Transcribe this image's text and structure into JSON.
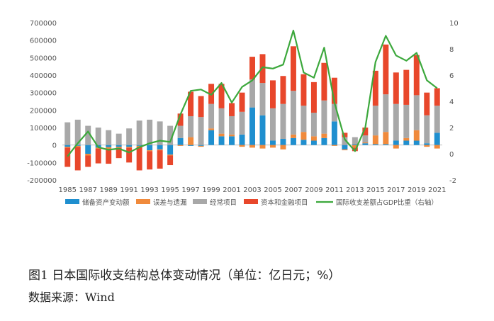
{
  "figure": {
    "caption": "图1  日本国际收支结构总体变动情况（单位：亿日元；%）",
    "source": "数据来源：Wind"
  },
  "chart_data": {
    "type": "bar",
    "stacked": true,
    "title": "",
    "categories": [
      "1985",
      "1986",
      "1987",
      "1988",
      "1989",
      "1990",
      "1991",
      "1992",
      "1993",
      "1994",
      "1995",
      "1996",
      "1997",
      "1998",
      "1999",
      "2000",
      "2001",
      "2002",
      "2003",
      "2004",
      "2005",
      "2006",
      "2007",
      "2008",
      "2009",
      "2010",
      "2011",
      "2012",
      "2013",
      "2014",
      "2015",
      "2016",
      "2017",
      "2018",
      "2019",
      "2020",
      "2021"
    ],
    "x_tick_labels": [
      "1985",
      "1987",
      "1989",
      "1991",
      "1993",
      "1995",
      "1997",
      "1999",
      "2001",
      "2003",
      "2005",
      "2007",
      "2009",
      "2011",
      "2013",
      "2015",
      "2017",
      "2019",
      "2021"
    ],
    "y_left": {
      "min": -200000,
      "max": 700000,
      "step": 100000,
      "ticks": [
        "-200000",
        "-100000",
        "0",
        "100000",
        "200000",
        "300000",
        "400000",
        "500000",
        "600000",
        "700000"
      ]
    },
    "y_right": {
      "min": -2,
      "max": 10,
      "step": 2,
      "ticks": [
        "-2",
        "0",
        "2",
        "4",
        "6",
        "8",
        "10"
      ]
    },
    "legend_position": "bottom",
    "grid": false,
    "series": [
      {
        "name": "储备资产变动额",
        "color": "#1f8fcf",
        "axis": "left",
        "values": [
          -10000,
          -5000,
          -50000,
          -15000,
          -12000,
          -10000,
          -10000,
          -5000,
          -30000,
          -25000,
          -55000,
          40000,
          -5000,
          -5000,
          85000,
          50000,
          50000,
          60000,
          215000,
          170000,
          25000,
          35000,
          40000,
          30000,
          25000,
          40000,
          135000,
          -25000,
          5000,
          10000,
          5000,
          5000,
          25000,
          25000,
          25000,
          10000,
          70000
        ]
      },
      {
        "name": "误差与遗漏",
        "color": "#f08a3c",
        "axis": "left",
        "values": [
          -5000,
          -5000,
          -10000,
          -5000,
          -10000,
          -5000,
          -5000,
          -5000,
          -5000,
          -5000,
          -5000,
          -5000,
          45000,
          -5000,
          10000,
          15000,
          10000,
          -10000,
          -15000,
          -20000,
          -15000,
          -25000,
          20000,
          45000,
          25000,
          25000,
          -5000,
          -5000,
          -15000,
          5000,
          50000,
          70000,
          -20000,
          15000,
          60000,
          -10000,
          -20000
        ]
      },
      {
        "name": "经常项目",
        "color": "#a8a8a8",
        "axis": "left",
        "values": [
          130000,
          145000,
          110000,
          100000,
          85000,
          65000,
          95000,
          140000,
          145000,
          135000,
          110000,
          70000,
          120000,
          160000,
          140000,
          145000,
          105000,
          130000,
          160000,
          185000,
          185000,
          200000,
          250000,
          150000,
          135000,
          190000,
          100000,
          45000,
          40000,
          40000,
          170000,
          215000,
          210000,
          190000,
          200000,
          160000,
          155000
        ]
      },
      {
        "name": "资本和金融项目",
        "color": "#e8472b",
        "axis": "left",
        "values": [
          -110000,
          -135000,
          -65000,
          -85000,
          -85000,
          -60000,
          -85000,
          -135000,
          -105000,
          -105000,
          -55000,
          70000,
          140000,
          120000,
          115000,
          140000,
          75000,
          110000,
          130000,
          165000,
          160000,
          160000,
          255000,
          180000,
          175000,
          215000,
          150000,
          25000,
          -20000,
          45000,
          200000,
          285000,
          180000,
          200000,
          230000,
          130000,
          100000
        ]
      },
      {
        "name": "国际收支差额占GDP比重（右轴）",
        "color": "#3ca83c",
        "axis": "right",
        "render": "line",
        "values": [
          -0.2,
          0.8,
          1.7,
          0.5,
          0.3,
          0.4,
          0.1,
          0.5,
          0.8,
          1.0,
          0.9,
          3.0,
          4.8,
          4.9,
          4.5,
          5.4,
          3.9,
          5.1,
          5.6,
          6.6,
          6.5,
          6.8,
          9.4,
          6.2,
          5.8,
          8.1,
          3.9,
          1.1,
          0.2,
          2.0,
          7.0,
          9.0,
          7.5,
          7.1,
          7.7,
          5.6,
          5.0
        ]
      }
    ]
  }
}
